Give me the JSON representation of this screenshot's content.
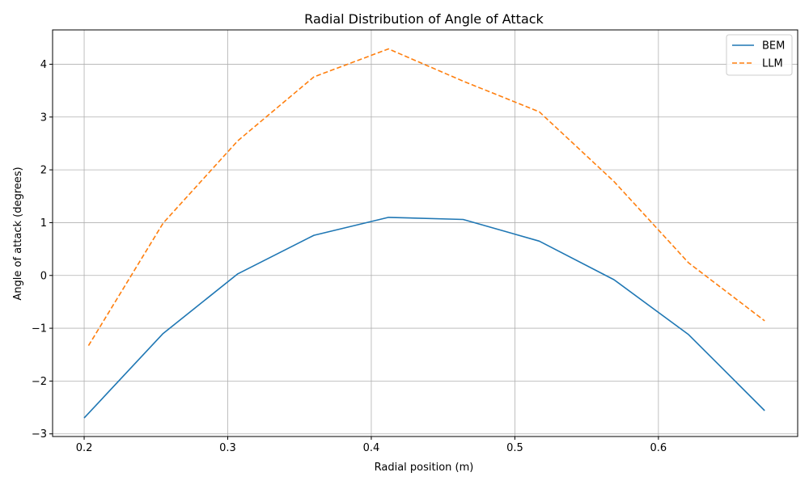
{
  "chart_data": {
    "type": "line",
    "title": "Radial Distribution of Angle of Attack",
    "xlabel": "Radial position (m)",
    "ylabel": "Angle of attack (degrees)",
    "xlim": [
      0.178,
      0.697
    ],
    "ylim": [
      -3.05,
      4.65
    ],
    "xticks": [
      0.2,
      0.3,
      0.4,
      0.5,
      0.6
    ],
    "xtick_labels": [
      "0.2",
      "0.3",
      "0.4",
      "0.5",
      "0.6"
    ],
    "yticks": [
      -3,
      -2,
      -1,
      0,
      1,
      2,
      3,
      4
    ],
    "ytick_labels": [
      "−3",
      "−2",
      "−1",
      "0",
      "1",
      "2",
      "3",
      "4"
    ],
    "grid": true,
    "legend_position": "top-right",
    "series": [
      {
        "name": "BEM",
        "color": "#1f77b4",
        "dash": "solid",
        "x": [
          0.2,
          0.255,
          0.307,
          0.36,
          0.412,
          0.464,
          0.517,
          0.569,
          0.621,
          0.674
        ],
        "y": [
          -2.7,
          -1.1,
          0.03,
          0.76,
          1.1,
          1.06,
          0.65,
          -0.08,
          -1.12,
          -2.56
        ]
      },
      {
        "name": "LLM",
        "color": "#ff7f0e",
        "dash": "dashed",
        "x": [
          0.203,
          0.255,
          0.307,
          0.36,
          0.412,
          0.464,
          0.517,
          0.569,
          0.621,
          0.674
        ],
        "y": [
          -1.33,
          0.99,
          2.55,
          3.76,
          4.29,
          3.68,
          3.1,
          1.78,
          0.24,
          -0.86
        ]
      }
    ]
  }
}
